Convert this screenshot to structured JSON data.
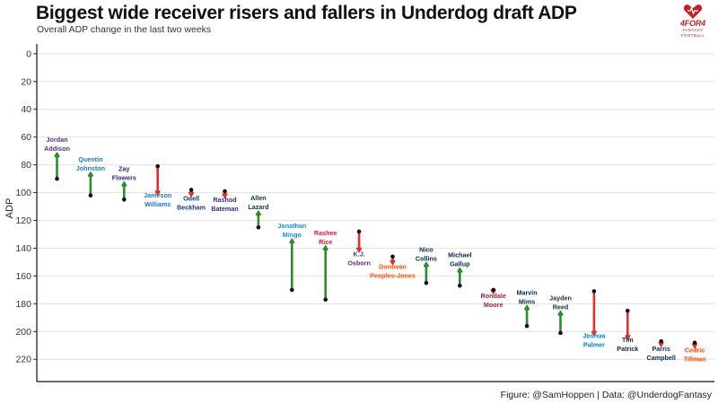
{
  "title": "Biggest wide receiver risers and fallers in Underdog draft ADP",
  "subtitle": "Overall ADP change in the last two weeks",
  "caption": "Figure: @SamHoppen | Data: @UnderdogFantasy",
  "logo": {
    "text": "4FOR4",
    "subtext": "FANTASY FOOTBALL",
    "icon": "heart-football-icon",
    "color": "#c8202a"
  },
  "colors": {
    "rise": "#2e8b2e",
    "fall": "#e03030",
    "point": "#111111",
    "grid": "#e2e2e2"
  },
  "chart_data": {
    "type": "arrow",
    "ylabel": "ADP",
    "xlabel": "",
    "yreversed": true,
    "ylim": [
      -7,
      236
    ],
    "yticks": [
      0,
      20,
      40,
      60,
      80,
      100,
      120,
      140,
      160,
      180,
      200,
      220
    ],
    "grid": true,
    "players": [
      {
        "first": "Jordan",
        "last": "Addison",
        "from": 90,
        "to": 72,
        "color": "#5b2d8e"
      },
      {
        "first": "Quentin",
        "last": "Johnston",
        "from": 102,
        "to": 86,
        "color": "#1f78b4"
      },
      {
        "first": "Zay",
        "last": "Flowers",
        "from": 105,
        "to": 93,
        "color": "#33267a"
      },
      {
        "first": "Jameson",
        "last": "Williams",
        "from": 81,
        "to": 101,
        "color": "#1f78b4"
      },
      {
        "first": "Odell",
        "last": "Beckham",
        "from": 98,
        "to": 102,
        "color": "#1a3a6e"
      },
      {
        "first": "Rashod",
        "last": "Bateman",
        "from": 99,
        "to": 103,
        "color": "#3c2a7a"
      },
      {
        "first": "Allen",
        "last": "Lazard",
        "from": 125,
        "to": 114,
        "color": "#0b3d32"
      },
      {
        "first": "Jonathan",
        "last": "Mingo",
        "from": 170,
        "to": 134,
        "color": "#1f8bc9"
      },
      {
        "first": "Rashee",
        "last": "Rice",
        "from": 177,
        "to": 139,
        "color": "#e01a3c"
      },
      {
        "first": "K.J.",
        "last": "Osborn",
        "from": 128,
        "to": 142,
        "color": "#5b2d8e"
      },
      {
        "first": "Donovan",
        "last": "Peoples-Jones",
        "from": 146,
        "to": 151,
        "color": "#ff4a00"
      },
      {
        "first": "Nico",
        "last": "Collins",
        "from": 165,
        "to": 151,
        "color": "#0b2a4a"
      },
      {
        "first": "Michael",
        "last": "Gallup",
        "from": 167,
        "to": 155,
        "color": "#0b2a4a"
      },
      {
        "first": "Rondale",
        "last": "Moore",
        "from": 170,
        "to": 172,
        "color": "#97233f"
      },
      {
        "first": "Marvin",
        "last": "Mims",
        "from": 196,
        "to": 182,
        "color": "#0b2a4a"
      },
      {
        "first": "Jayden",
        "last": "Reed",
        "from": 201,
        "to": 186,
        "color": "#203731"
      },
      {
        "first": "Joshua",
        "last": "Palmer",
        "from": 171,
        "to": 202,
        "color": "#0080c6"
      },
      {
        "first": "Tim",
        "last": "Patrick",
        "from": 185,
        "to": 205,
        "color": "#0b2a4a"
      },
      {
        "first": "Parris",
        "last": "Campbell",
        "from": 207,
        "to": 210,
        "color": "#0b2a4a"
      },
      {
        "first": "Cedric",
        "last": "Tillman",
        "from": 208,
        "to": 211,
        "color": "#ff3c00"
      }
    ]
  }
}
